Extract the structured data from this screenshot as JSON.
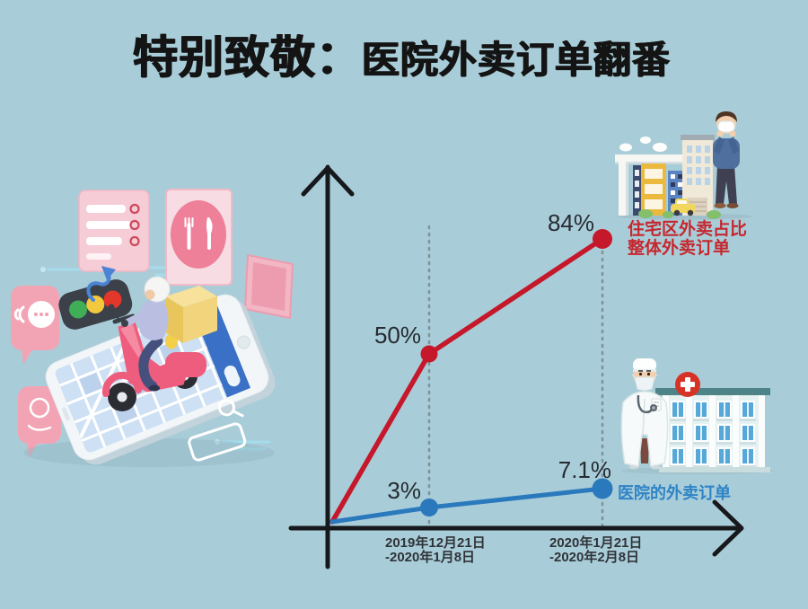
{
  "poster": {
    "background_color": "#a9cdd8",
    "title_prefix": "特别致敬：",
    "title_main": "医院外卖订单翻番"
  },
  "chart_data": {
    "type": "line",
    "title": "医院外卖订单翻番",
    "x_categories": [
      "2019年12月21日-2020年1月8日",
      "2020年1月21日-2020年2月8日"
    ],
    "x_tick_labels": [
      {
        "line1": "2019年12月21日",
        "line2": "-2020年1月8日"
      },
      {
        "line1": "2020年1月21日",
        "line2": "-2020年2月8日"
      }
    ],
    "series": [
      {
        "name": "住宅区外卖占比整体外卖订单",
        "legend_line1": "住宅区外卖占比",
        "legend_line2": "整体外卖订单",
        "color": "#c5182b",
        "values": [
          50,
          84
        ],
        "point_labels": [
          "50%",
          "84%"
        ]
      },
      {
        "name": "医院的外卖订单",
        "legend_line1": "医院的外卖订单",
        "legend_line2": "",
        "color": "#2a79bd",
        "values": [
          3,
          7.1
        ],
        "point_labels": [
          "3%",
          "7.1%"
        ]
      }
    ],
    "axes": {
      "style": "black arrow axes, no numeric ticks, dotted vertical guides at the two periods"
    },
    "legend_position": "right of line endpoints"
  },
  "illustrations": {
    "left_scene": "isometric delivery scooter rider on a smartphone map with order cards, restaurant card, chat bubbles, traffic light and search bar",
    "top_right_scene": "man with face mask beside residential buildings, clouds, car and bushes",
    "mid_right_scene": "doctor with face mask in front of hospital building with red cross"
  },
  "colors": {
    "background": "#a9cdd8",
    "axis": "#17181b",
    "red_series": "#c5182b",
    "blue_series": "#2a79bd",
    "red_label_text": "#c5272e",
    "blue_label_text": "#2f83c6",
    "value_text": "#262b31",
    "date_text": "#2f3339",
    "guide_dots": "#7e939b"
  }
}
